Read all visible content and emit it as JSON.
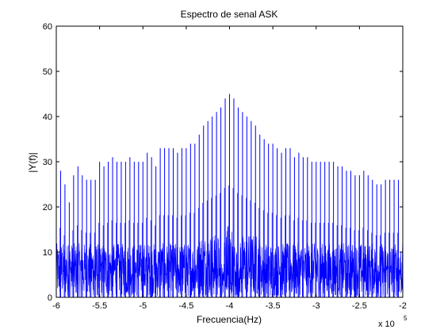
{
  "chart_data": {
    "type": "line",
    "title": "Espectro de senal ASK",
    "xlabel": "Frecuencia(Hz)",
    "ylabel": "|Y(f)|",
    "x_multiplier_base": "x 10",
    "x_multiplier_exponent": "5",
    "xlim": [
      -6,
      -2
    ],
    "ylim": [
      0,
      60
    ],
    "xticks": [
      -6,
      -5.5,
      -5,
      -4.5,
      -4,
      -3.5,
      -3,
      -2.5,
      -2
    ],
    "xtick_labels": [
      "-6",
      "-5.5",
      "-5",
      "-4.5",
      "-4",
      "-3.5",
      "-3",
      "-2.5",
      "-2"
    ],
    "yticks": [
      0,
      10,
      20,
      30,
      40,
      50,
      60
    ],
    "ytick_labels": [
      "0",
      "10",
      "20",
      "30",
      "40",
      "50",
      "60"
    ],
    "grid": false,
    "line_color": "#0000ff",
    "center_x": -4.0,
    "harmonic_spacing": 0.05,
    "peak_value": 45,
    "spikes": [
      {
        "x": -5.95,
        "y": 28
      },
      {
        "x": -5.9,
        "y": 25
      },
      {
        "x": -5.85,
        "y": 21
      },
      {
        "x": -5.8,
        "y": 27
      },
      {
        "x": -5.75,
        "y": 29
      },
      {
        "x": -5.7,
        "y": 27
      },
      {
        "x": -5.65,
        "y": 26
      },
      {
        "x": -5.6,
        "y": 26
      },
      {
        "x": -5.55,
        "y": 26
      },
      {
        "x": -5.5,
        "y": 30
      },
      {
        "x": -5.45,
        "y": 29
      },
      {
        "x": -5.4,
        "y": 30
      },
      {
        "x": -5.35,
        "y": 31
      },
      {
        "x": -5.3,
        "y": 30
      },
      {
        "x": -5.25,
        "y": 30
      },
      {
        "x": -5.2,
        "y": 30
      },
      {
        "x": -5.15,
        "y": 31
      },
      {
        "x": -5.1,
        "y": 30
      },
      {
        "x": -5.05,
        "y": 30
      },
      {
        "x": -5.0,
        "y": 30
      },
      {
        "x": -4.95,
        "y": 32
      },
      {
        "x": -4.9,
        "y": 31
      },
      {
        "x": -4.85,
        "y": 29
      },
      {
        "x": -4.8,
        "y": 33
      },
      {
        "x": -4.75,
        "y": 33
      },
      {
        "x": -4.7,
        "y": 33
      },
      {
        "x": -4.65,
        "y": 33
      },
      {
        "x": -4.6,
        "y": 32
      },
      {
        "x": -4.55,
        "y": 33
      },
      {
        "x": -4.5,
        "y": 33
      },
      {
        "x": -4.45,
        "y": 34
      },
      {
        "x": -4.4,
        "y": 34
      },
      {
        "x": -4.35,
        "y": 36
      },
      {
        "x": -4.3,
        "y": 38
      },
      {
        "x": -4.25,
        "y": 39
      },
      {
        "x": -4.2,
        "y": 40
      },
      {
        "x": -4.15,
        "y": 41
      },
      {
        "x": -4.1,
        "y": 42
      },
      {
        "x": -4.05,
        "y": 44
      },
      {
        "x": -4.0,
        "y": 45
      },
      {
        "x": -3.95,
        "y": 44
      },
      {
        "x": -3.9,
        "y": 42
      },
      {
        "x": -3.85,
        "y": 41
      },
      {
        "x": -3.8,
        "y": 40
      },
      {
        "x": -3.75,
        "y": 39
      },
      {
        "x": -3.7,
        "y": 38
      },
      {
        "x": -3.65,
        "y": 36
      },
      {
        "x": -3.6,
        "y": 35
      },
      {
        "x": -3.55,
        "y": 34
      },
      {
        "x": -3.5,
        "y": 34
      },
      {
        "x": -3.45,
        "y": 33
      },
      {
        "x": -3.4,
        "y": 32
      },
      {
        "x": -3.35,
        "y": 33
      },
      {
        "x": -3.3,
        "y": 33
      },
      {
        "x": -3.25,
        "y": 31
      },
      {
        "x": -3.2,
        "y": 32
      },
      {
        "x": -3.15,
        "y": 31
      },
      {
        "x": -3.1,
        "y": 31
      },
      {
        "x": -3.05,
        "y": 30
      },
      {
        "x": -3.0,
        "y": 30
      },
      {
        "x": -2.95,
        "y": 30
      },
      {
        "x": -2.9,
        "y": 30
      },
      {
        "x": -2.85,
        "y": 30
      },
      {
        "x": -2.8,
        "y": 30
      },
      {
        "x": -2.75,
        "y": 29
      },
      {
        "x": -2.7,
        "y": 29
      },
      {
        "x": -2.65,
        "y": 28
      },
      {
        "x": -2.6,
        "y": 28
      },
      {
        "x": -2.55,
        "y": 27
      },
      {
        "x": -2.5,
        "y": 27
      },
      {
        "x": -2.45,
        "y": 28
      },
      {
        "x": -2.4,
        "y": 27
      },
      {
        "x": -2.35,
        "y": 26
      },
      {
        "x": -2.3,
        "y": 25
      },
      {
        "x": -2.25,
        "y": 25
      },
      {
        "x": -2.2,
        "y": 26
      },
      {
        "x": -2.15,
        "y": 26
      },
      {
        "x": -2.1,
        "y": 26
      },
      {
        "x": -2.05,
        "y": 26
      }
    ],
    "noise_floor_max": 12,
    "center_gap_range": [
      -4.12,
      -3.88
    ]
  }
}
